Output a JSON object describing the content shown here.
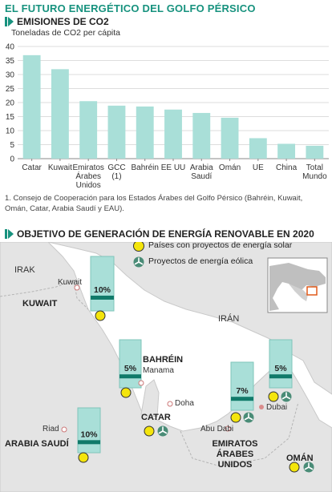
{
  "title": "EL FUTURO ENERGÉTICO DEL GOLFO PÉRSICO",
  "section1": {
    "heading": "EMISIONES DE CO2"
  },
  "section2": {
    "heading": "OBJETIVO DE GENERACIÓN DE ENERGÍA RENOVABLE EN 2020"
  },
  "footnote": "1. Consejo de Cooperación para los Estados Árabes del Golfo Pérsico (Bahréin, Kuwait, Omán, Catar, Arabia Saudí y EAU).",
  "colors": {
    "accent": "#17927e",
    "bar": "#a9dfd8",
    "land": "#e4e4e4",
    "sea": "#ffffff",
    "solar": "#f4e50c",
    "wind": "#4a8c77",
    "target_fill": "#a9dfd8",
    "target_bar": "#107a6a"
  },
  "chart_data": {
    "type": "bar",
    "ylabel": "Toneladas de CO2 per cápita",
    "ylim": [
      0,
      40
    ],
    "yticks": [
      0,
      5,
      10,
      15,
      20,
      25,
      30,
      35,
      40
    ],
    "grid": true,
    "categories": [
      [
        "Catar"
      ],
      [
        "Kuwait"
      ],
      [
        "Emiratos",
        "Árabes",
        "Unidos"
      ],
      [
        "GCC",
        "(1)"
      ],
      [
        "Bahréin"
      ],
      [
        "EE UU"
      ],
      [
        "Arabia",
        "Saudí"
      ],
      [
        "Omán"
      ],
      [
        "UE"
      ],
      [
        "China"
      ],
      [
        "Total",
        "Mundo"
      ]
    ],
    "values": [
      36.9,
      31.9,
      20.5,
      18.9,
      18.6,
      17.5,
      16.3,
      14.6,
      7.3,
      5.3,
      4.6
    ]
  },
  "map": {
    "legend": [
      {
        "icon": "solar",
        "label": "Países con proyectos de energía solar"
      },
      {
        "icon": "wind",
        "label": "Proyectos de energía eólica"
      }
    ],
    "regions": {
      "irak": "IRAK",
      "iran": "IRÁN"
    },
    "cities": {
      "kuwait": "Kuwait",
      "manama": "Manama",
      "doha": "Doha",
      "riad": "Riad",
      "abudabi": "Abu Dabi",
      "dubai": "Dubai"
    },
    "countries": {
      "kuwait": "KUWAIT",
      "bahrein": "BAHRÉIN",
      "catar": "CATAR",
      "arabia": [
        "ARABIA SAUDÍ"
      ],
      "emiratos": [
        "EMIRATOS",
        "ÁRABES",
        "UNIDOS"
      ],
      "oman": "OMÁN"
    },
    "targets": [
      {
        "country": "Kuwait",
        "value": 10,
        "label": "10%"
      },
      {
        "country": "Bahréin",
        "value": 5,
        "label": "5%"
      },
      {
        "country": "Arabia Saudí",
        "value": 10,
        "label": "10%"
      },
      {
        "country": "Emiratos (Abu Dabi)",
        "value": 7,
        "label": "7%"
      },
      {
        "country": "Emiratos (Dubai)",
        "value": 5,
        "label": "5%"
      }
    ]
  }
}
